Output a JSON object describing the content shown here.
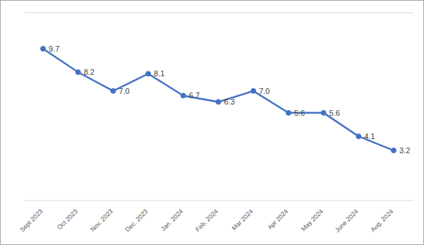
{
  "chart_data": {
    "type": "line",
    "categories": [
      "Sept 2023",
      "Oct 2023",
      "Nov. 2023",
      "Dec. 2023",
      "Jan. 2024",
      "Feb. 2024",
      "Mar 2024",
      "Apr 2024",
      "May 2024",
      "June 2024",
      "Aug. 2024"
    ],
    "values": [
      9.7,
      8.2,
      7.0,
      8.1,
      6.7,
      6.3,
      7.0,
      5.6,
      5.6,
      4.1,
      3.2
    ],
    "value_labels": [
      "9.7",
      "8.2",
      "7.0",
      "8.1",
      "6.7",
      "6.3",
      "7.0",
      "5.6",
      "5.6",
      "4.1",
      "3.2"
    ],
    "color": "#4472c4",
    "marker": "circle",
    "ylim": [
      0,
      12
    ],
    "yticks": [
      0,
      2,
      4,
      6,
      8,
      10,
      12
    ],
    "grid": true,
    "data_labels": true,
    "tick_labels": "x"
  }
}
